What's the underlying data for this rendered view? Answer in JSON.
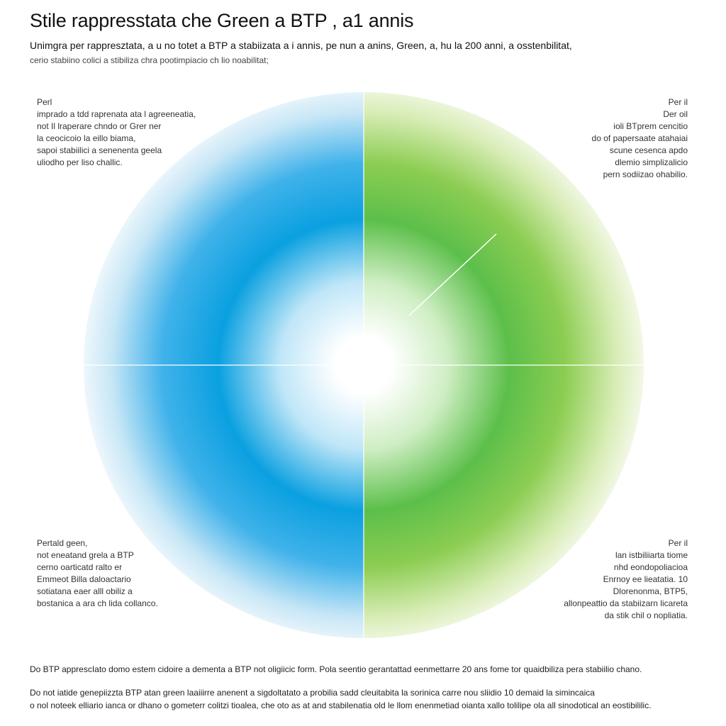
{
  "header": {
    "title": "Stile rappresstata che Green a BTP , a1 annis",
    "subtitle": "Unimgra per rappresztata, a u no totet a BTP a stabiizata a i annis, pe nun a anins, Green, a, hu la 200 anni, a osstenbilitat,",
    "subtitle2": "cerio stabiino colici a stibiliza chra pootimpiacio ch lio noabilitat;"
  },
  "notes": {
    "top_left": [
      "Perl",
      "imprado a tdd raprenata ata l agreeneatia,",
      "not Il lraperare chndo or Grer ner",
      "la ceocicoio la eillo biama,",
      "sapoi stabiilici a senenenta geela",
      "uliodho per liso challic."
    ],
    "top_right": [
      "Per il",
      "Der oil",
      "ioli BTprem cencitio",
      "do of papersaate atahaiai",
      "scune cesenca apdo",
      "dlemio simplizalicio",
      "pern sodiizao ohabilio."
    ],
    "bottom_left": [
      "Pertald geen,",
      "not eneatand grela a BTP",
      "cerno oarticatd ralto er",
      "Emmeot Billa daloactario",
      "sotiatana eaer alll obiliz a",
      "bostanica a ara ch lida collanco."
    ],
    "bottom_right": [
      "Per il",
      "lan istbiliiarta tiome",
      "nhd eondopoliacioa",
      "Enrnoy ee lieatatia. 10",
      "Dlorenonma, BTP5,",
      "allonpeattio da stabiizarn licareta",
      "da stik chil o nopliatia."
    ]
  },
  "footer": {
    "line1": "Do BTP apprescIato domo estem cidoire a dementa a BTP not oligiicic form. Pola seentio gerantattad eenmettarre 20 ans fome tor quaidbiliza pera stabiilio chano.",
    "line2": "Do not iatide genepiizzta BTP atan green laaiiirre anenent a sigdoltatato a probilia sadd cleuitabita la sorinica carre nou sliidio 10 demaid la simincaica",
    "line3": "o nol noteek elliario ianca or dhano o gometerr colitzi tioalea, che oto as at and stabilenatia old le llom enenmetiad oianta xallo tolilipe ola all sinodotical an eostibililic."
  },
  "colors": {
    "blue": "#0aa0e0",
    "green": "#5cbf4a",
    "light_green": "#a6d43a",
    "divider": "#ffffff"
  }
}
